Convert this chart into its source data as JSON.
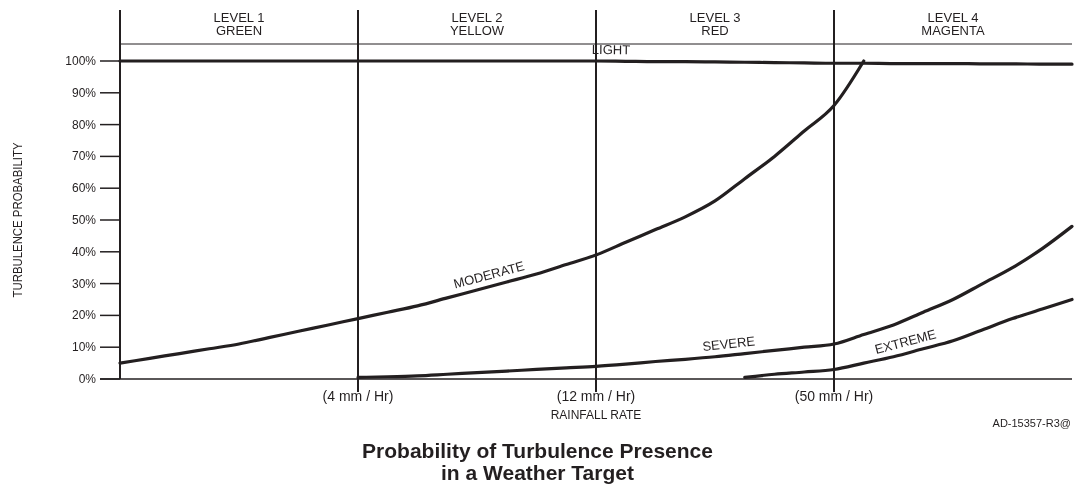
{
  "chart_data": {
    "type": "line",
    "title": "Probability of Turbulence Presence in a Weather Target",
    "xlabel": "RAINFALL RATE",
    "ylabel": "TURBULENCE PROBABILITY",
    "annotations": [
      "LEVEL 1 GREEN",
      "LEVEL 2 YELLOW",
      "LEVEL 3 RED",
      "LEVEL 4 MAGENTA",
      "AD-15357-R3@"
    ],
    "categories": [
      null,
      null,
      null,
      null,
      null,
      null,
      null,
      null,
      "(4 mm / Hr)",
      null,
      null,
      null,
      null,
      null,
      null,
      null,
      "(12 mm / Hr)",
      null,
      null,
      null,
      null,
      null,
      null,
      null,
      "(50 mm / Hr)",
      null,
      null,
      null,
      null,
      null,
      null,
      null,
      null
    ],
    "ylim": [
      0,
      100
    ],
    "yticks": [
      {
        "value": 0,
        "label": "0%"
      },
      {
        "value": 10,
        "label": "10%"
      },
      {
        "value": 20,
        "label": "20%"
      },
      {
        "value": 30,
        "label": "30%"
      },
      {
        "value": 40,
        "label": "40%"
      },
      {
        "value": 50,
        "label": "50%"
      },
      {
        "value": 60,
        "label": "60%"
      },
      {
        "value": 70,
        "label": "70%"
      },
      {
        "value": 80,
        "label": "80%"
      },
      {
        "value": 90,
        "label": "90%"
      },
      {
        "value": 100,
        "label": "100%"
      }
    ],
    "series": [
      {
        "name": "LIGHT",
        "color": "#231f20",
        "values": [
          100,
          100,
          100,
          100,
          100,
          100,
          100,
          100,
          100,
          100,
          100,
          100,
          100,
          100,
          100,
          100,
          100,
          99.9,
          99.8,
          99.8,
          99.7,
          99.6,
          99.5,
          99.4,
          99.3,
          99.3,
          99.2,
          99.2,
          99.2,
          99.1,
          99.1,
          99,
          99
        ]
      },
      {
        "name": "MODERATE",
        "color": "#231f20",
        "values": [
          5,
          6.5,
          8,
          9.5,
          11,
          13,
          15,
          17,
          19,
          21,
          23,
          25.5,
          28,
          30.5,
          33,
          36,
          39,
          43,
          47,
          51,
          56,
          63,
          70,
          78,
          86,
          100,
          null,
          null,
          null,
          null,
          null,
          null,
          null
        ]
      },
      {
        "name": "SEVERE",
        "color": "#231f20",
        "values": [
          null,
          null,
          null,
          null,
          null,
          null,
          null,
          null,
          0.5,
          0.7,
          1,
          1.5,
          2,
          2.5,
          3,
          3.5,
          4,
          4.7,
          5.5,
          6.2,
          7,
          8,
          9,
          10,
          11,
          14,
          17,
          21,
          25,
          30,
          35,
          41,
          48
        ]
      },
      {
        "name": "EXTREME",
        "color": "#231f20",
        "values": [
          null,
          null,
          null,
          null,
          null,
          null,
          null,
          null,
          null,
          null,
          null,
          null,
          null,
          null,
          null,
          null,
          null,
          null,
          null,
          null,
          null,
          0.5,
          1.5,
          2.2,
          3,
          5,
          7,
          9.5,
          12,
          15.5,
          19,
          22,
          25
        ]
      }
    ],
    "grid": "x",
    "marker": "none",
    "line_style": "solid"
  }
}
